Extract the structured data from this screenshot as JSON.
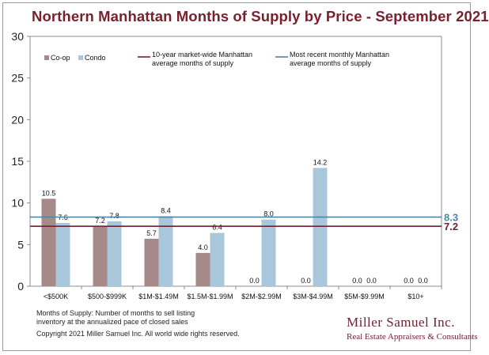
{
  "colors": {
    "coop": "#a68a8a",
    "condo": "#a9c7db",
    "avg10": "#6e2331",
    "recent": "#4a86ac",
    "title": "#7a1f2b"
  },
  "chart_data": {
    "type": "bar",
    "title": "Northern Manhattan Months of Supply by Price - September 2021",
    "categories": [
      "<$500K",
      "$500-$999K",
      "$1M-$1.49M",
      "$1.5M-$1.99M",
      "$2M-$2.99M",
      "$3M-$4.99M",
      "$5M-$9.99M",
      "$10+"
    ],
    "series": [
      {
        "name": "Co-op",
        "values": [
          10.5,
          7.2,
          5.7,
          4.0,
          0.0,
          0.0,
          0.0,
          0.0
        ],
        "labels": [
          "10.5",
          "7.2",
          "5.7",
          "4.0",
          "0.0",
          "0.0",
          "0.0",
          "0.0"
        ]
      },
      {
        "name": "Condo",
        "values": [
          7.6,
          7.8,
          8.4,
          6.4,
          8.0,
          14.2,
          0.0,
          0.0
        ],
        "labels": [
          "7.6",
          "7.8",
          "8.4",
          "6.4",
          "8.0",
          "14.2",
          "0.0",
          "0.0"
        ]
      }
    ],
    "reference_lines": [
      {
        "name": "10-year market-wide Manhattan average months of supply",
        "label_lines": [
          "10-year market-wide Manhattan",
          "average months of supply"
        ],
        "value": 7.2,
        "value_label": "7.2"
      },
      {
        "name": "Most recent monthly Manhattan average months of supply",
        "label_lines": [
          "Most recent monthly Manhattan",
          "average months of supply"
        ],
        "value": 8.3,
        "value_label": "8.3"
      }
    ],
    "ylim": [
      0,
      30
    ],
    "yticks": [
      "0",
      "5",
      "10",
      "15",
      "20",
      "25",
      "30"
    ],
    "xlabel": "",
    "ylabel": "",
    "legend_position": "top-left"
  },
  "footnote": {
    "line1": "Months of Supply: Number of months to sell listing",
    "line2": "inventory at the annualized pace of closed sales",
    "copyright": "Copyright 2021 Miller Samuel Inc.  All world wide rights reserved."
  },
  "branding": {
    "name": "Miller Samuel Inc.",
    "tagline": "Real Estate Appraisers & Consultants"
  }
}
